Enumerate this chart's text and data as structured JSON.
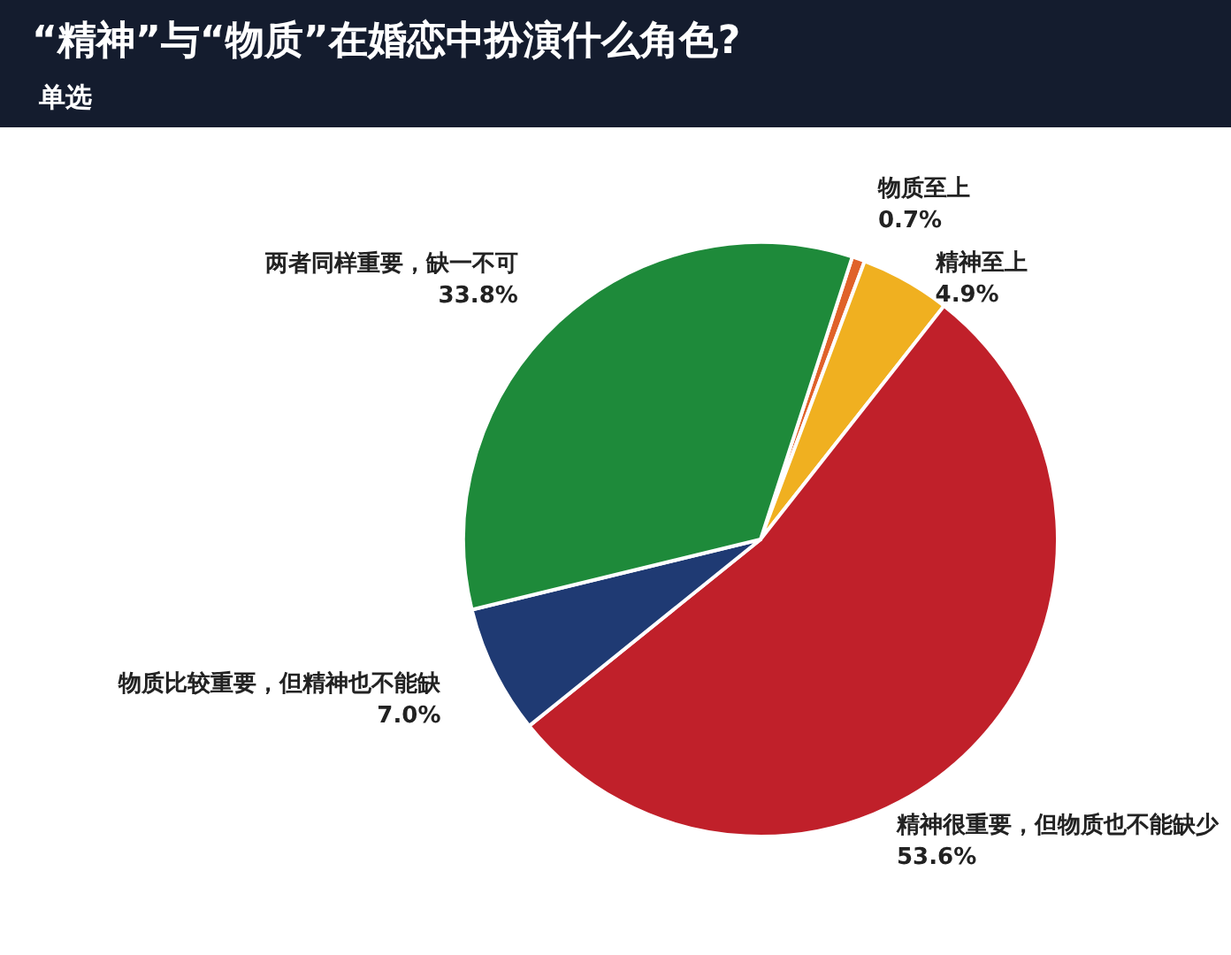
{
  "chart_data": {
    "type": "pie",
    "title": "“精神”与“物质”在婚恋中扮演什么角色?",
    "subtitle": "单选",
    "categories": [
      "物质至上",
      "精神至上",
      "精神很重要，但物质也不能缺少",
      "物质比较重要，但精神也不能缺",
      "两者同样重要，缺一不可"
    ],
    "values": [
      0.7,
      4.9,
      53.6,
      7.0,
      33.8
    ],
    "value_labels": [
      "0.7%",
      "4.9%",
      "53.6%",
      "7.0%",
      "33.8%"
    ],
    "colors": [
      "#e0622a",
      "#f0b020",
      "#c0202a",
      "#1f3a73",
      "#1e8a3a"
    ]
  }
}
